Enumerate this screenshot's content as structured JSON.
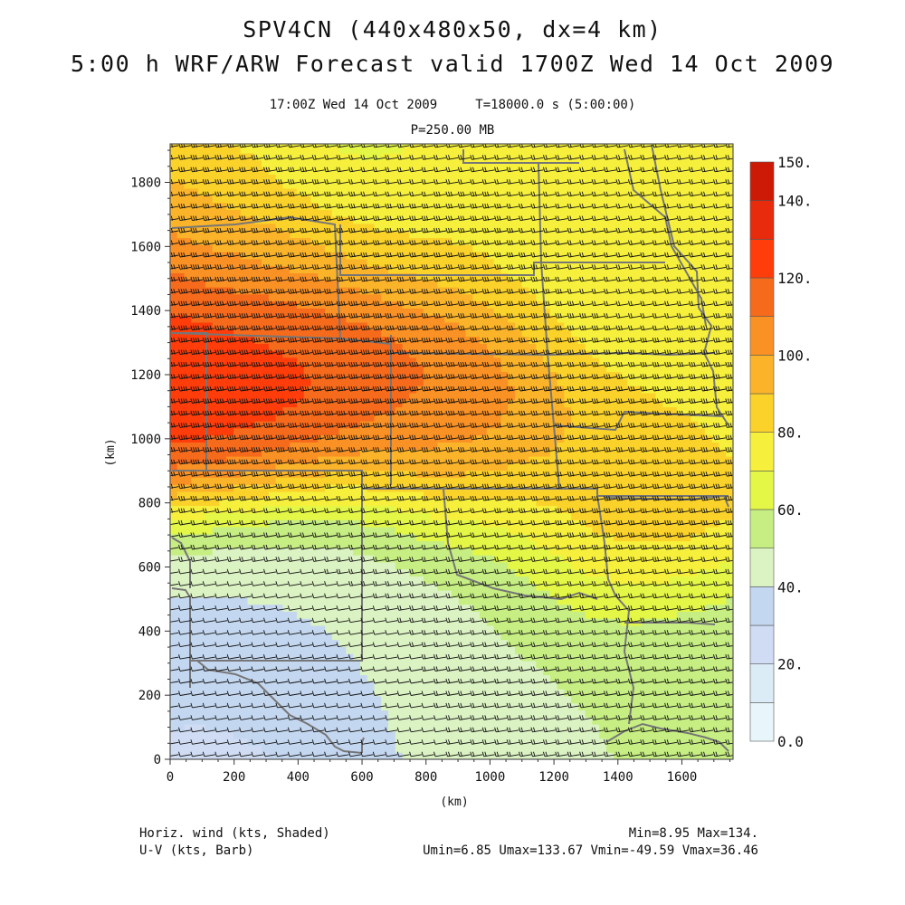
{
  "title": {
    "line1": "SPV4CN (440x480x50, dx=4 km)",
    "line2": "5:00 h WRF/ARW Forecast valid 1700Z Wed 14 Oct 2009"
  },
  "subtitle": "17:00Z Wed 14 Oct 2009     T=18000.0 s (5:00:00)",
  "level": "P=250.00 MB",
  "footer": {
    "left1": "Horiz. wind (kts, Shaded)",
    "left2": "U-V (kts, Barb)",
    "right1": "Min=8.95 Max=134.",
    "right2": "Umin=6.85 Umax=133.67 Vmin=-49.59 Vmax=36.46"
  },
  "chart_data": {
    "type": "heatmap",
    "xlabel": "(km)",
    "ylabel": "(km)",
    "xlim": [
      0,
      1760
    ],
    "ylim": [
      0,
      1920
    ],
    "xticks": [
      0,
      200,
      400,
      600,
      800,
      1000,
      1200,
      1400,
      1600
    ],
    "xtick_labels": [
      "0",
      "200",
      "400",
      "600",
      "800",
      "1000",
      "1200",
      "1400",
      "1600"
    ],
    "yticks": [
      0,
      200,
      400,
      600,
      800,
      1000,
      1200,
      1400,
      1600,
      1800
    ],
    "ytick_labels": [
      "0",
      "200",
      "400",
      "600",
      "800",
      "1000",
      "1200",
      "1400",
      "1600",
      "1800"
    ],
    "field_min": 8.95,
    "field_max": 134,
    "field_centers": [
      {
        "x": 220,
        "y": 1240,
        "speed": 132,
        "spread": 240
      },
      {
        "x": 500,
        "y": 1330,
        "speed": 120,
        "spread": 230
      },
      {
        "x": 900,
        "y": 1100,
        "speed": 112,
        "spread": 230
      },
      {
        "x": 1400,
        "y": 780,
        "speed": 98,
        "spread": 220
      },
      {
        "x": 1700,
        "y": 1200,
        "speed": 76,
        "spread": 260
      },
      {
        "x": 300,
        "y": 1650,
        "speed": 86,
        "spread": 210
      },
      {
        "x": 600,
        "y": 1800,
        "speed": 58,
        "spread": 220
      },
      {
        "x": 800,
        "y": 1700,
        "speed": 82,
        "spread": 200
      },
      {
        "x": 1300,
        "y": 1600,
        "speed": 70,
        "spread": 250
      },
      {
        "x": 450,
        "y": 420,
        "speed": 44,
        "spread": 300
      },
      {
        "x": 1100,
        "y": 420,
        "speed": 48,
        "spread": 320
      },
      {
        "x": 300,
        "y": 120,
        "speed": 24,
        "spread": 230
      },
      {
        "x": 1650,
        "y": 250,
        "speed": 52,
        "spread": 220
      }
    ],
    "colorbar": {
      "levels": [
        0,
        10,
        20,
        30,
        40,
        50,
        60,
        70,
        80,
        90,
        100,
        110,
        120,
        130,
        140,
        150
      ],
      "colors": [
        "#e8f6fb",
        "#dcecf7",
        "#cfdcf3",
        "#c4d7f0",
        "#dbf2c3",
        "#c6ee82",
        "#e4f746",
        "#f6f03c",
        "#fbd22a",
        "#fbb42a",
        "#fa9124",
        "#f66a1c",
        "#ff3d0a",
        "#e82a0d",
        "#cd1a07",
        "#a80d03"
      ],
      "labels": [
        "0.0",
        "20.",
        "40.",
        "60.",
        "80.",
        "100.",
        "120.",
        "140.",
        "150."
      ],
      "label_values": [
        0,
        20,
        40,
        60,
        80,
        100,
        120,
        140,
        150
      ]
    },
    "annotations": [
      "Horiz. wind (kts, Shaded)",
      "U-V (kts, Barb)"
    ]
  },
  "colors": {
    "background": "#ffffff",
    "text": "#111111",
    "border": "#555555",
    "state_lines": "#767676",
    "barbs": "#111111"
  }
}
